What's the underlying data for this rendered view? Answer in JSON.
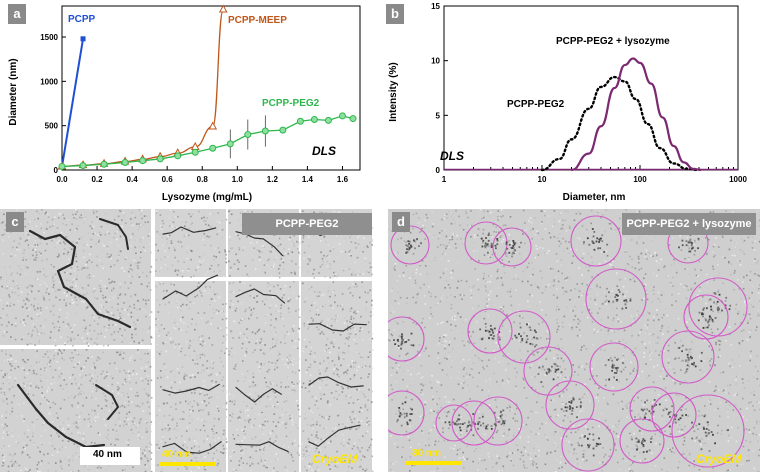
{
  "panels": {
    "a": "a",
    "b": "b",
    "c": "c",
    "d": "d"
  },
  "chart_data": [
    {
      "type": "line",
      "panel": "a",
      "xlabel": "Lysozyme (mg/mL)",
      "ylabel": "Diameter (nm)",
      "xlim": [
        0,
        1.7
      ],
      "ylim": [
        0,
        1850
      ],
      "xticks": [
        "0.0",
        "0.2",
        "0.4",
        "0.6",
        "0.8",
        "1.0",
        "1.2",
        "1.4",
        "1.6"
      ],
      "yticks": [
        "0",
        "500",
        "1000",
        "1500"
      ],
      "annotation": "DLS",
      "grid": false,
      "series": [
        {
          "name": "PCPP",
          "color": "#1f4fd6",
          "marker": "square",
          "x": [
            0,
            0.12
          ],
          "y": [
            40,
            1480
          ]
        },
        {
          "name": "PCPP-MEEP",
          "color": "#c0561a",
          "marker": "triangle",
          "x": [
            0,
            0.12,
            0.24,
            0.36,
            0.46,
            0.56,
            0.66,
            0.76,
            0.86,
            0.92
          ],
          "y": [
            40,
            55,
            70,
            95,
            120,
            150,
            190,
            260,
            490,
            1810
          ]
        },
        {
          "name": "PCPP-PEG2",
          "color": "#2db84d",
          "marker": "circle",
          "x": [
            0,
            0.12,
            0.24,
            0.36,
            0.46,
            0.56,
            0.66,
            0.76,
            0.86,
            0.96,
            1.06,
            1.16,
            1.26,
            1.36,
            1.44,
            1.52,
            1.6,
            1.66
          ],
          "y": [
            40,
            50,
            65,
            85,
            105,
            125,
            160,
            200,
            245,
            295,
            400,
            440,
            450,
            550,
            570,
            560,
            610,
            580
          ]
        }
      ]
    },
    {
      "type": "line",
      "panel": "b",
      "xlabel": "Diameter, nm",
      "ylabel": "Intensity (%)",
      "xscale": "log",
      "xlim": [
        1,
        1000
      ],
      "ylim": [
        0,
        15
      ],
      "xticks": [
        "1",
        "10",
        "100",
        "1000"
      ],
      "yticks": [
        "0",
        "5",
        "10",
        "15"
      ],
      "annotation": "DLS",
      "grid": false,
      "series": [
        {
          "name": "PCPP-PEG2",
          "color": "#000000",
          "style": "dotted",
          "x": [
            10,
            15,
            20,
            30,
            40,
            55,
            70,
            90,
            120,
            160,
            220,
            300,
            400
          ],
          "y": [
            0,
            1.0,
            2.8,
            5.6,
            7.6,
            8.5,
            8.1,
            6.5,
            4.2,
            2.0,
            0.6,
            0.1,
            0
          ]
        },
        {
          "name": "PCPP-PEG2 + lysozyme",
          "color": "#7b2a72",
          "style": "solid",
          "x": [
            20,
            30,
            40,
            55,
            70,
            85,
            100,
            130,
            170,
            220,
            280,
            350,
            420
          ],
          "y": [
            0,
            1.5,
            4.0,
            7.5,
            9.6,
            10.2,
            9.8,
            7.9,
            4.8,
            2.2,
            0.7,
            0.1,
            0
          ]
        }
      ]
    }
  ],
  "panel_c": {
    "title": "PCPP-PEG2",
    "scale_left": "40 nm",
    "scale_right": "40 nm",
    "method": "CryoEM"
  },
  "panel_d": {
    "title": "PCPP-PEG2 + lysozyme",
    "scale": "80 nm",
    "method": "CryoEM",
    "circle_color": "#d15bc8"
  }
}
